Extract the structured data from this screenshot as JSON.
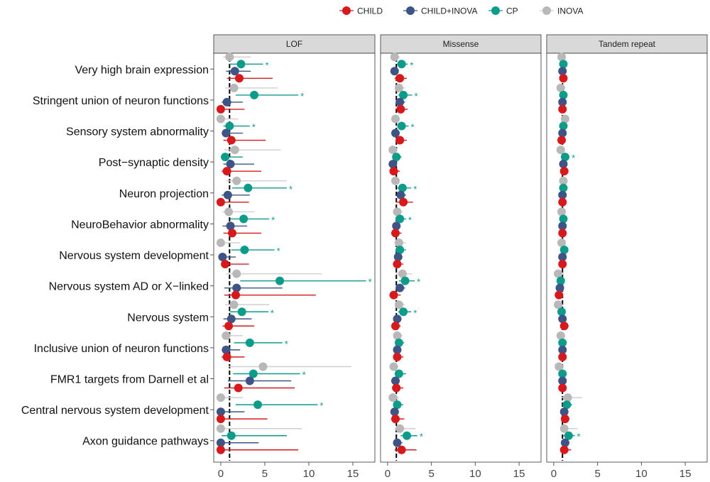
{
  "chart_data": {
    "type": "forest",
    "legend": [
      "CHILD",
      "CHILD+INOVA",
      "CP",
      "INOVA"
    ],
    "colors": {
      "CHILD": "#D7191C",
      "CHILD+INOVA": "#3E5487",
      "CP": "#0E9C8A",
      "INOVA": "#B8B8B8"
    },
    "ci_colors": {
      "CHILD": "#D7191C",
      "CHILD+INOVA": "#3E5487",
      "CP": "#0E9C8A",
      "INOVA": "#CFCFCF"
    },
    "categories": [
      "Very high brain expression",
      "Stringent union of neuron functions",
      "Sensory system abnormality",
      "Post−synaptic density",
      "Neuron projection",
      "NeuroBehavior abnormality",
      "Nervous system development",
      "Nervous system AD or X−linked",
      "Nervous system",
      "Inclusive union of neuron functions",
      "FMR1 targets from Darnell et al",
      "Central nervous system development",
      "Axon guidance pathways"
    ],
    "xlim": [
      -0.8,
      17.5
    ],
    "xticks": [
      0,
      5,
      10,
      15
    ],
    "reference_line": 1,
    "facets": [
      {
        "name": "LOF",
        "data": {
          "INOVA": [
            [
              1.0,
              0.3,
              3.4
            ],
            [
              1.5,
              0.5,
              6.5
            ],
            [
              0.0,
              0.0,
              2.0
            ],
            [
              1.6,
              0.4,
              6.8
            ],
            [
              1.8,
              0.6,
              7.5
            ],
            [
              0.9,
              0.2,
              3.8
            ],
            [
              0.0,
              0.0,
              2.2
            ],
            [
              1.8,
              0.6,
              11.5
            ],
            [
              1.5,
              0.5,
              5.5
            ],
            [
              0.6,
              0.1,
              2.5
            ],
            [
              4.8,
              0.9,
              14.8
            ],
            [
              0.0,
              0.0,
              2.5
            ],
            [
              0.0,
              0.0,
              9.2
            ]
          ],
          "CP": [
            [
              2.3,
              1.0,
              4.8
            ],
            [
              3.8,
              1.7,
              8.8
            ],
            [
              1.0,
              0.3,
              3.3
            ],
            [
              0.5,
              0.0,
              2.5
            ],
            [
              3.1,
              1.3,
              7.5
            ],
            [
              2.6,
              1.1,
              5.5
            ],
            [
              2.7,
              1.2,
              6.1
            ],
            [
              6.7,
              2.2,
              16.5
            ],
            [
              2.4,
              1.0,
              5.4
            ],
            [
              3.3,
              1.5,
              7.0
            ],
            [
              3.7,
              1.4,
              9.0
            ],
            [
              4.2,
              1.7,
              11.0
            ],
            [
              1.2,
              0.1,
              7.5
            ]
          ],
          "CHILD+INOVA": [
            [
              1.6,
              0.6,
              3.4
            ],
            [
              0.7,
              0.1,
              2.5
            ],
            [
              0.6,
              0.1,
              2.5
            ],
            [
              1.1,
              0.3,
              3.8
            ],
            [
              0.8,
              0.1,
              3.3
            ],
            [
              1.1,
              0.2,
              3.0
            ],
            [
              0.2,
              0.0,
              1.7
            ],
            [
              1.8,
              0.4,
              7.0
            ],
            [
              1.2,
              0.3,
              3.5
            ],
            [
              0.6,
              0.1,
              2.2
            ],
            [
              3.3,
              0.8,
              8.0
            ],
            [
              0.0,
              0.0,
              2.7
            ],
            [
              0.0,
              0.0,
              4.3
            ]
          ],
          "CHILD": [
            [
              2.1,
              0.7,
              5.9
            ],
            [
              0.0,
              0.0,
              2.7
            ],
            [
              1.2,
              0.3,
              5.1
            ],
            [
              0.7,
              0.1,
              4.6
            ],
            [
              0.0,
              0.0,
              3.2
            ],
            [
              1.3,
              0.3,
              4.6
            ],
            [
              0.5,
              0.1,
              3.2
            ],
            [
              1.7,
              0.4,
              10.8
            ],
            [
              0.9,
              0.2,
              3.8
            ],
            [
              0.7,
              0.1,
              2.7
            ],
            [
              2.0,
              0.4,
              8.4
            ],
            [
              0.0,
              0.0,
              5.3
            ],
            [
              0.0,
              0.0,
              8.8
            ]
          ]
        },
        "stars": {
          "CP": [
            true,
            true,
            true,
            false,
            true,
            true,
            true,
            true,
            true,
            true,
            true,
            true,
            false
          ]
        }
      },
      {
        "name": "Missense",
        "data": {
          "INOVA": [
            [
              0.8,
              0.5,
              1.4
            ],
            [
              1.3,
              0.9,
              2.0
            ],
            [
              0.9,
              0.6,
              1.4
            ],
            [
              0.6,
              0.3,
              1.1
            ],
            [
              0.9,
              0.6,
              1.4
            ],
            [
              1.1,
              0.7,
              1.7
            ],
            [
              1.3,
              0.8,
              2.1
            ],
            [
              1.7,
              1.0,
              2.8
            ],
            [
              1.3,
              0.9,
              2.0
            ],
            [
              1.1,
              0.7,
              1.7
            ],
            [
              0.7,
              0.4,
              1.2
            ],
            [
              0.6,
              0.2,
              1.3
            ],
            [
              1.4,
              0.8,
              3.2
            ]
          ],
          "CP": [
            [
              1.6,
              1.1,
              2.3
            ],
            [
              1.8,
              1.2,
              2.8
            ],
            [
              1.6,
              1.1,
              2.4
            ],
            [
              1.0,
              0.6,
              1.6
            ],
            [
              1.7,
              1.1,
              2.7
            ],
            [
              1.4,
              1.0,
              2.1
            ],
            [
              1.4,
              0.9,
              2.1
            ],
            [
              2.0,
              1.3,
              3.1
            ],
            [
              1.8,
              1.2,
              2.7
            ],
            [
              1.3,
              0.9,
              1.9
            ],
            [
              1.3,
              0.8,
              2.1
            ],
            [
              1.1,
              0.7,
              1.8
            ],
            [
              2.2,
              1.5,
              3.4
            ]
          ],
          "CHILD+INOVA": [
            [
              0.8,
              0.5,
              1.2
            ],
            [
              1.4,
              1.0,
              2.0
            ],
            [
              0.9,
              0.6,
              1.3
            ],
            [
              0.6,
              0.3,
              1.0
            ],
            [
              1.5,
              1.0,
              2.1
            ],
            [
              1.0,
              0.7,
              1.4
            ],
            [
              1.2,
              0.8,
              1.7
            ],
            [
              1.4,
              0.9,
              2.0
            ],
            [
              1.1,
              0.8,
              1.6
            ],
            [
              1.1,
              0.8,
              1.5
            ],
            [
              0.9,
              0.5,
              1.4
            ],
            [
              0.8,
              0.4,
              1.3
            ],
            [
              1.1,
              0.7,
              1.7
            ]
          ],
          "CHILD": [
            [
              1.4,
              0.8,
              2.2
            ],
            [
              1.5,
              0.9,
              2.3
            ],
            [
              1.4,
              0.9,
              2.2
            ],
            [
              0.7,
              0.3,
              1.4
            ],
            [
              1.8,
              1.0,
              2.9
            ],
            [
              0.9,
              0.5,
              1.6
            ],
            [
              1.1,
              0.6,
              1.8
            ],
            [
              0.7,
              0.3,
              1.5
            ],
            [
              0.9,
              0.5,
              1.5
            ],
            [
              1.1,
              0.7,
              1.8
            ],
            [
              1.0,
              0.5,
              1.8
            ],
            [
              0.9,
              0.4,
              1.9
            ],
            [
              1.6,
              0.8,
              3.3
            ]
          ]
        },
        "stars": {
          "CP": [
            true,
            true,
            true,
            false,
            true,
            true,
            false,
            true,
            true,
            false,
            false,
            false,
            true
          ]
        }
      },
      {
        "name": "Tandem repeat",
        "data": {
          "INOVA": [
            [
              0.9,
              0.7,
              1.2
            ],
            [
              0.8,
              0.6,
              1.1
            ],
            [
              1.3,
              0.9,
              1.7
            ],
            [
              0.8,
              0.6,
              1.1
            ],
            [
              1.1,
              0.8,
              1.4
            ],
            [
              0.9,
              0.6,
              1.2
            ],
            [
              0.9,
              0.6,
              1.2
            ],
            [
              0.5,
              0.3,
              1.2
            ],
            [
              0.5,
              0.3,
              0.9
            ],
            [
              0.8,
              0.6,
              1.1
            ],
            [
              0.6,
              0.4,
              0.9
            ],
            [
              1.6,
              0.9,
              3.2
            ],
            [
              1.2,
              0.8,
              2.7
            ]
          ],
          "CP": [
            [
              1.1,
              0.9,
              1.3
            ],
            [
              1.1,
              0.9,
              1.4
            ],
            [
              1.1,
              0.8,
              1.4
            ],
            [
              1.3,
              0.9,
              1.8
            ],
            [
              1.1,
              0.8,
              1.4
            ],
            [
              1.1,
              0.8,
              1.4
            ],
            [
              1.2,
              0.9,
              1.6
            ],
            [
              0.8,
              0.6,
              1.1
            ],
            [
              0.9,
              0.6,
              1.2
            ],
            [
              1.0,
              0.8,
              1.3
            ],
            [
              1.0,
              0.7,
              1.4
            ],
            [
              1.5,
              1.0,
              2.1
            ],
            [
              1.7,
              1.1,
              2.4
            ]
          ],
          "CHILD+INOVA": [
            [
              1.0,
              0.8,
              1.2
            ],
            [
              1.0,
              0.8,
              1.2
            ],
            [
              1.0,
              0.8,
              1.2
            ],
            [
              1.1,
              0.8,
              1.4
            ],
            [
              1.0,
              0.8,
              1.2
            ],
            [
              1.0,
              0.8,
              1.2
            ],
            [
              1.0,
              0.8,
              1.3
            ],
            [
              0.7,
              0.5,
              1.0
            ],
            [
              1.0,
              0.8,
              1.3
            ],
            [
              1.0,
              0.8,
              1.2
            ],
            [
              1.0,
              0.8,
              1.3
            ],
            [
              1.2,
              0.9,
              1.6
            ],
            [
              1.3,
              0.9,
              1.8
            ]
          ],
          "CHILD": [
            [
              1.1,
              0.8,
              1.4
            ],
            [
              1.0,
              0.8,
              1.3
            ],
            [
              0.9,
              0.6,
              1.2
            ],
            [
              1.2,
              0.9,
              1.6
            ],
            [
              1.0,
              0.8,
              1.3
            ],
            [
              1.0,
              0.7,
              1.3
            ],
            [
              1.0,
              0.7,
              1.3
            ],
            [
              0.6,
              0.4,
              0.9
            ],
            [
              1.2,
              0.9,
              1.7
            ],
            [
              1.0,
              0.8,
              1.3
            ],
            [
              1.0,
              0.7,
              1.4
            ],
            [
              1.3,
              0.9,
              1.8
            ],
            [
              1.2,
              0.8,
              2.0
            ]
          ]
        },
        "stars": {
          "CP": [
            false,
            false,
            false,
            true,
            false,
            false,
            false,
            false,
            false,
            false,
            false,
            false,
            true
          ]
        }
      }
    ],
    "star_symbol": "*"
  }
}
